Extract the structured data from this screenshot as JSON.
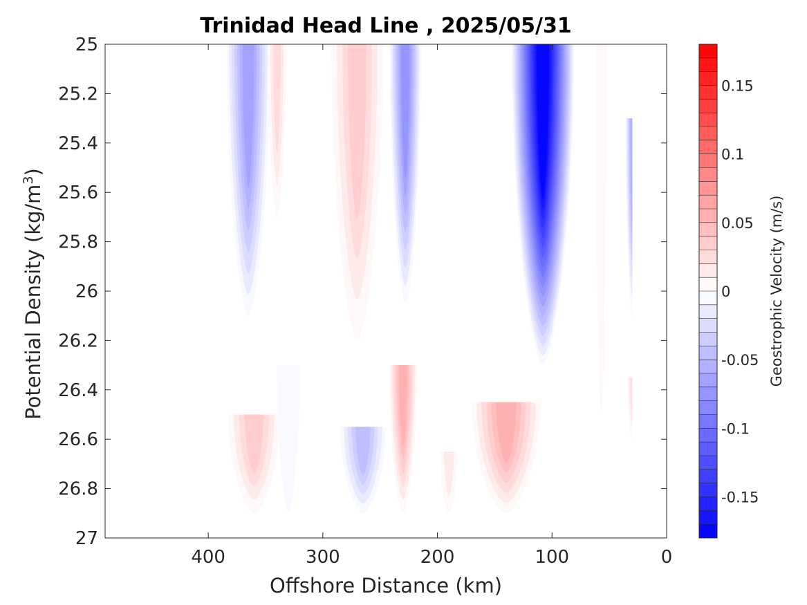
{
  "chart_data": {
    "type": "heatmap",
    "title": "Trinidad Head Line , 2025/05/31",
    "xlabel": "Offshore Distance (km)",
    "ylabel": "Potential Density (kg/m",
    "ylabel_sup": "3",
    "ylabel_close": ")",
    "colorbar_label": "Geostrophic Velocity (m/s)",
    "xlim": [
      490,
      0
    ],
    "ylim": [
      25,
      27
    ],
    "x_reversed": true,
    "y_reversed": true,
    "xticks": [
      400,
      300,
      200,
      100,
      0
    ],
    "xtick_labels": [
      "400",
      "300",
      "200",
      "100",
      "0"
    ],
    "yticks": [
      25,
      25.2,
      25.4,
      25.6,
      25.8,
      26,
      26.2,
      26.4,
      26.6,
      26.8,
      27
    ],
    "ytick_labels": [
      "25",
      "25.2",
      "25.4",
      "25.6",
      "25.8",
      "26",
      "26.2",
      "26.4",
      "26.6",
      "26.8",
      "27"
    ],
    "clim": [
      -0.18,
      0.18
    ],
    "colorbar_levels": 36,
    "colorbar_ticks": [
      0.15,
      0.1,
      0.05,
      0,
      -0.05,
      -0.1,
      -0.15
    ],
    "colorbar_tick_labels": [
      "0.15",
      "0.1",
      "0.05",
      "0",
      "-0.05",
      "-0.1",
      "-0.15"
    ],
    "colormap": {
      "negative": "#0000ff",
      "zero": "#ffffff",
      "positive": "#ff0000"
    },
    "features": [
      {
        "name": "negative-core-365km",
        "x_center": 365,
        "x_width": 38,
        "y_top": 25.0,
        "y_bottom": 26.1,
        "peak_velocity": -0.07
      },
      {
        "name": "positive-core-340km",
        "x_center": 340,
        "x_width": 16,
        "y_top": 25.0,
        "y_bottom": 25.7,
        "peak_velocity": 0.025
      },
      {
        "name": "positive-core-270km",
        "x_center": 270,
        "x_width": 45,
        "y_top": 25.0,
        "y_bottom": 26.2,
        "peak_velocity": 0.04
      },
      {
        "name": "negative-core-228km",
        "x_center": 228,
        "x_width": 28,
        "y_top": 25.0,
        "y_bottom": 26.05,
        "peak_velocity": -0.08
      },
      {
        "name": "negative-core-108km",
        "x_center": 108,
        "x_width": 55,
        "y_top": 25.0,
        "y_bottom": 26.3,
        "peak_velocity": -0.18
      },
      {
        "name": "negative-core-30km",
        "x_center": 30,
        "x_width": 12,
        "y_top": 25.3,
        "y_bottom": 26.1,
        "peak_velocity": -0.06
      },
      {
        "name": "positive-core-360km-deep",
        "x_center": 360,
        "x_width": 45,
        "y_top": 26.5,
        "y_bottom": 26.9,
        "peak_velocity": 0.035
      },
      {
        "name": "negative-core-320km-deep",
        "x_center": 330,
        "x_width": 20,
        "y_top": 26.3,
        "y_bottom": 26.9,
        "peak_velocity": -0.01
      },
      {
        "name": "negative-core-265km-deep",
        "x_center": 265,
        "x_width": 40,
        "y_top": 26.55,
        "y_bottom": 26.9,
        "peak_velocity": -0.05
      },
      {
        "name": "positive-core-230km-deep",
        "x_center": 230,
        "x_width": 25,
        "y_top": 26.3,
        "y_bottom": 26.9,
        "peak_velocity": 0.06
      },
      {
        "name": "positive-core-190km-deep",
        "x_center": 190,
        "x_width": 15,
        "y_top": 26.65,
        "y_bottom": 26.9,
        "peak_velocity": 0.015
      },
      {
        "name": "positive-core-140km-deep",
        "x_center": 140,
        "x_width": 60,
        "y_top": 26.45,
        "y_bottom": 26.9,
        "peak_velocity": 0.06
      },
      {
        "name": "positive-core-55km",
        "x_center": 57,
        "x_width": 10,
        "y_top": 25.0,
        "y_bottom": 26.5,
        "peak_velocity": 0.012
      },
      {
        "name": "positive-core-30km-deep",
        "x_center": 30,
        "x_width": 8,
        "y_top": 26.35,
        "y_bottom": 26.6,
        "peak_velocity": 0.03
      }
    ],
    "data_extent": {
      "x_min": 30,
      "x_max": 420,
      "y_max": 26.9
    }
  }
}
